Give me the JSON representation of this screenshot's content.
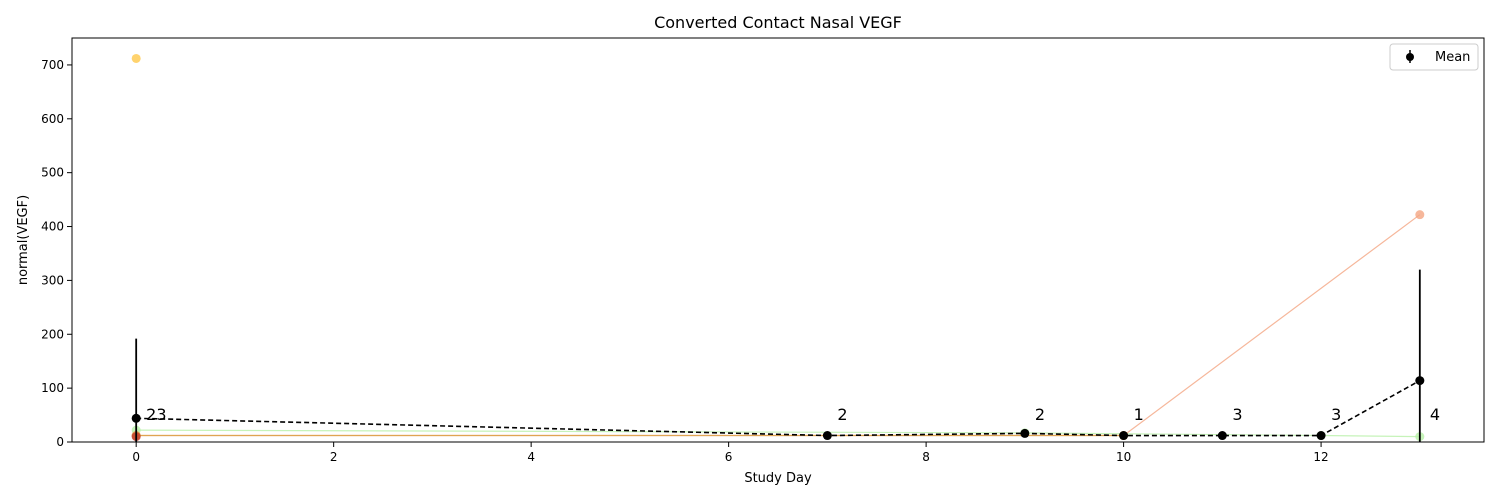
{
  "chart_data": {
    "type": "line",
    "title": "Converted Contact Nasal VEGF",
    "xlabel": "Study Day",
    "ylabel": "normal(VEGF)",
    "xlim": [
      -0.65,
      13.65
    ],
    "ylim": [
      0,
      750
    ],
    "xticks": [
      0,
      2,
      4,
      6,
      8,
      10,
      12
    ],
    "yticks": [
      0,
      100,
      200,
      300,
      400,
      500,
      600,
      700
    ],
    "grid": false,
    "legend": {
      "placement": "top-right",
      "entries": [
        "Mean"
      ]
    },
    "subject_series": [
      {
        "color": "#ffc84a",
        "points": [
          {
            "x": 0,
            "y": 712
          }
        ]
      },
      {
        "color": "#b8f0a8",
        "points": [
          {
            "x": 0,
            "y": 22
          },
          {
            "x": 9,
            "y": 17
          },
          {
            "x": 12,
            "y": 12
          },
          {
            "x": 13,
            "y": 10
          }
        ]
      },
      {
        "color": "#f4a582",
        "points": [
          {
            "x": 0,
            "y": 12
          },
          {
            "x": 10,
            "y": 12
          },
          {
            "x": 13,
            "y": 422
          }
        ]
      },
      {
        "color": "#d9a040",
        "points": [
          {
            "x": 0,
            "y": 12
          },
          {
            "x": 10,
            "y": 12
          }
        ]
      },
      {
        "color": "#c0392b",
        "points": [
          {
            "x": 0,
            "y": 10
          }
        ]
      }
    ],
    "mean_series": {
      "name": "Mean",
      "color": "#000000",
      "points": [
        {
          "x": 0,
          "y": 44,
          "err": 148,
          "n": "23"
        },
        {
          "x": 7,
          "y": 12,
          "err": 0,
          "n": "2"
        },
        {
          "x": 9,
          "y": 16,
          "err": 0,
          "n": "2"
        },
        {
          "x": 10,
          "y": 12,
          "err": 0,
          "n": "1"
        },
        {
          "x": 11,
          "y": 12,
          "err": 0,
          "n": "3"
        },
        {
          "x": 12,
          "y": 12,
          "err": 0,
          "n": "3"
        },
        {
          "x": 13,
          "y": 114,
          "err": 206,
          "n": "4"
        }
      ]
    }
  }
}
